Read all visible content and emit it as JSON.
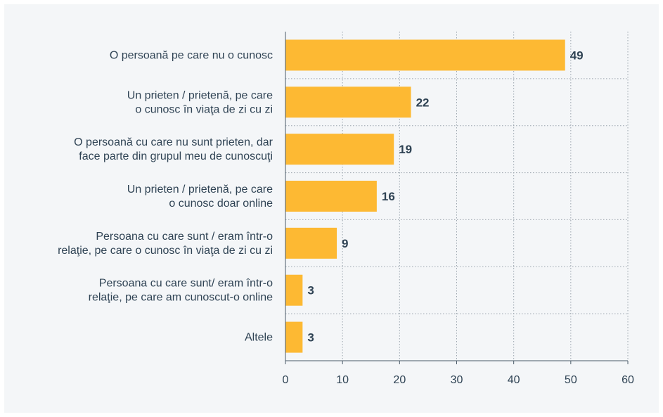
{
  "chart_data": {
    "type": "bar",
    "orientation": "horizontal",
    "categories": [
      [
        "O persoană pe care nu o cunosc"
      ],
      [
        "Un prieten / prietenă, pe care",
        "o cunosc în viaţa de zi cu zi"
      ],
      [
        "O persoană cu care nu sunt prieten, dar",
        "face parte din grupul meu de cunoscuţi"
      ],
      [
        "Un prieten / prietenă, pe care",
        "o cunosc doar online"
      ],
      [
        "Persoana cu care sunt / eram într-o",
        "relaţie, pe care o cunosc în viaţa de zi cu zi"
      ],
      [
        "Persoana cu care sunt/ eram într-o",
        "relaţie, pe care am cunoscut-o  online"
      ],
      [
        "Altele"
      ]
    ],
    "values": [
      49,
      22,
      19,
      16,
      9,
      3,
      3
    ],
    "value_labels": [
      "49",
      "22",
      "19",
      "16",
      "9",
      "3",
      "3"
    ],
    "xlim": [
      0,
      60
    ],
    "xticks": [
      0,
      10,
      20,
      30,
      40,
      50,
      60
    ],
    "xtick_labels": [
      "0",
      "10",
      "20",
      "30",
      "40",
      "50",
      "60"
    ],
    "grid": "dotted-both",
    "bar_color": "#fdb933",
    "grid_color": "#9aa4ad",
    "axis_color": "#4a5a68",
    "text_color": "#2f4354",
    "background_color": "#f4f6f8"
  }
}
